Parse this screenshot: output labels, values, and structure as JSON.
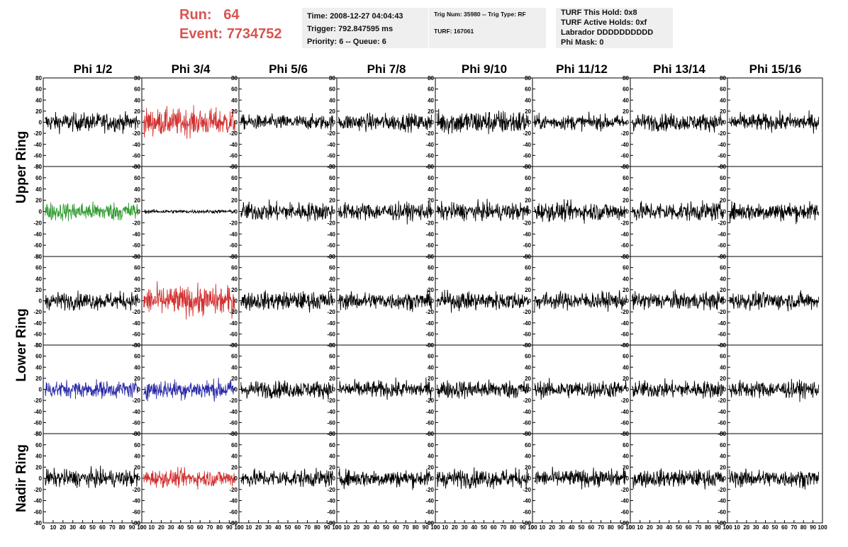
{
  "header": {
    "run_label": "Run:",
    "run_value": "64",
    "event_label": "Event:",
    "event_value": "7734752",
    "time": "Time: 2008-12-27 04:04:43",
    "trigger": "Trigger: 792.847595 ms",
    "priority": "Priority: 6 -- Queue: 6",
    "trig_num": "Trig Num: 35980 -- Trig Type: RF",
    "turf": "TURF: 167061",
    "turf_hold": "TURF This Hold: 0x8",
    "turf_active": "TURF Active Holds: 0xf",
    "labrador": "Labrador DDDDDDDDDD",
    "phi_mask": "Phi Mask: 0"
  },
  "columns": [
    "Phi 1/2",
    "Phi 3/4",
    "Phi 5/6",
    "Phi 7/8",
    "Phi 9/10",
    "Phi 11/12",
    "Phi 13/14",
    "Phi 15/16"
  ],
  "rings": [
    "Upper Ring",
    "Lower Ring",
    "Nadir Ring"
  ],
  "colors": {
    "black": "#000000",
    "red": "#d32f2f",
    "green": "#2e9a2e",
    "blue": "#2a2aa8",
    "info_bg": "#efefef",
    "run_text": "#d9534f"
  },
  "chart_data": {
    "type": "line",
    "grid": "8 columns x 5 rows of waveform panels",
    "xlim": [
      0,
      100
    ],
    "ylim": [
      -80,
      80
    ],
    "y_ticks": [
      -80,
      -60,
      -40,
      -20,
      0,
      20,
      40,
      60,
      80
    ],
    "x_ticks": [
      0,
      10,
      20,
      30,
      40,
      50,
      60,
      70,
      80,
      90,
      100
    ],
    "trace_colors": [
      [
        "black",
        "red",
        "black",
        "black",
        "black",
        "black",
        "black",
        "black"
      ],
      [
        "green",
        "black",
        "black",
        "black",
        "black",
        "black",
        "black",
        "black"
      ],
      [
        "black",
        "red",
        "black",
        "black",
        "black",
        "black",
        "black",
        "black"
      ],
      [
        "blue",
        "blue",
        "black",
        "black",
        "black",
        "black",
        "black",
        "black"
      ],
      [
        "black",
        "red",
        "black",
        "black",
        "black",
        "black",
        "black",
        "black"
      ]
    ],
    "amplitudes": [
      [
        15,
        22,
        12,
        14,
        20,
        12,
        14,
        14
      ],
      [
        15,
        3,
        15,
        14,
        14,
        15,
        15,
        15
      ],
      [
        14,
        24,
        15,
        14,
        15,
        14,
        14,
        14
      ],
      [
        14,
        16,
        14,
        14,
        15,
        14,
        14,
        14
      ],
      [
        14,
        14,
        14,
        14,
        15,
        14,
        14,
        14
      ]
    ]
  }
}
